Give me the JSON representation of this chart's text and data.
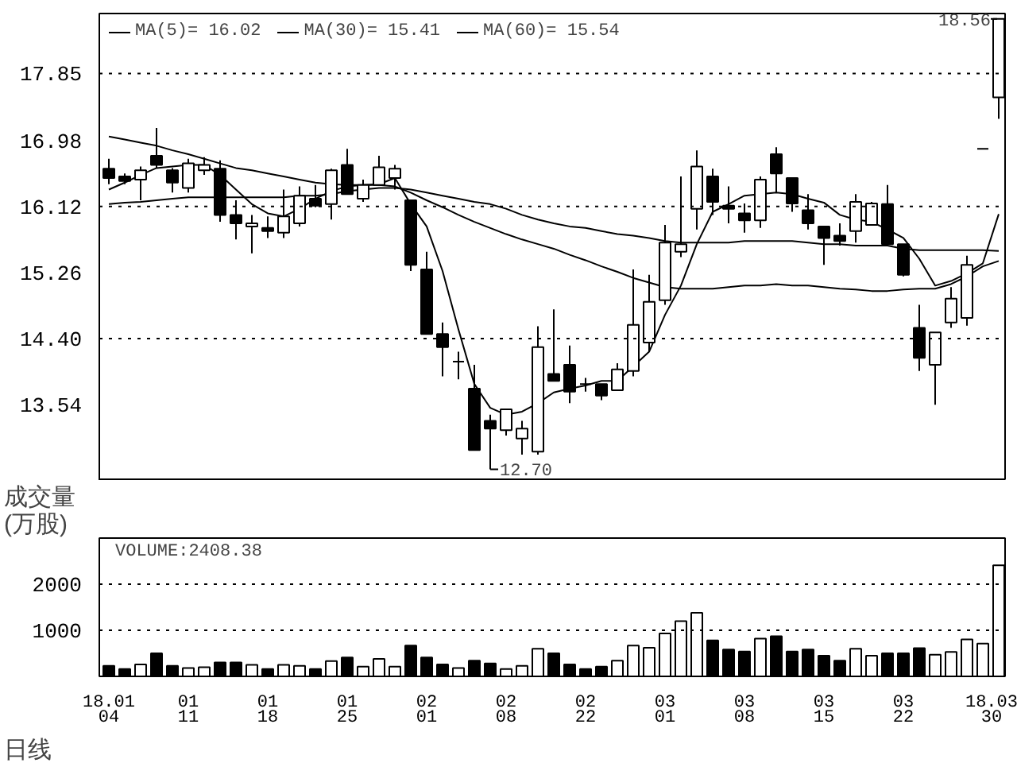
{
  "chart_data": [
    {
      "type": "candlestick",
      "categories": [
        null,
        null,
        null,
        null,
        null,
        null,
        null,
        null,
        null,
        null,
        null,
        null,
        null,
        null,
        null,
        null,
        null,
        null,
        null,
        null,
        null,
        null,
        null,
        null,
        null,
        null,
        null,
        null,
        null,
        null,
        null,
        null,
        null,
        null,
        null,
        null,
        null,
        null,
        null,
        null,
        null,
        null,
        null,
        null,
        null,
        null,
        null,
        null,
        null,
        null,
        null,
        null,
        null,
        null,
        null,
        null,
        null
      ],
      "ohlc": [
        [
          16.61,
          16.74,
          16.41,
          16.49
        ],
        [
          16.51,
          16.55,
          16.41,
          16.45
        ],
        [
          16.47,
          16.64,
          16.2,
          16.59
        ],
        [
          16.78,
          17.14,
          16.62,
          16.66
        ],
        [
          16.59,
          16.62,
          16.3,
          16.43
        ],
        [
          16.36,
          16.74,
          16.3,
          16.68
        ],
        [
          16.59,
          16.76,
          16.53,
          16.66
        ],
        [
          16.61,
          16.72,
          15.92,
          16.01
        ],
        [
          16.01,
          16.2,
          15.69,
          15.9
        ],
        [
          15.86,
          16.01,
          15.51,
          15.9
        ],
        [
          15.84,
          15.99,
          15.71,
          15.8
        ],
        [
          15.78,
          16.34,
          15.71,
          15.99
        ],
        [
          15.9,
          16.38,
          15.86,
          16.26
        ],
        [
          16.22,
          16.4,
          16.11,
          16.13
        ],
        [
          16.15,
          16.61,
          15.95,
          16.59
        ],
        [
          16.66,
          16.87,
          16.28,
          16.28
        ],
        [
          16.22,
          16.47,
          16.18,
          16.4
        ],
        [
          16.4,
          16.78,
          16.4,
          16.63
        ],
        [
          16.49,
          16.66,
          16.34,
          16.61
        ],
        [
          16.2,
          16.2,
          15.28,
          15.36
        ],
        [
          15.3,
          15.53,
          14.46,
          14.46
        ],
        [
          14.46,
          14.61,
          13.91,
          14.29
        ],
        [
          14.1,
          14.23,
          13.87,
          14.1
        ],
        [
          13.75,
          14.06,
          12.95,
          12.95
        ],
        [
          13.33,
          13.41,
          12.7,
          13.23
        ],
        [
          13.21,
          13.48,
          13.14,
          13.48
        ],
        [
          13.1,
          13.33,
          12.89,
          13.23
        ],
        [
          12.93,
          14.56,
          12.89,
          14.29
        ],
        [
          13.94,
          14.78,
          13.85,
          13.85
        ],
        [
          14.06,
          14.31,
          13.56,
          13.71
        ],
        [
          13.81,
          13.89,
          13.71,
          13.81
        ],
        [
          13.81,
          13.81,
          13.6,
          13.66
        ],
        [
          13.73,
          14.08,
          13.73,
          14.0
        ],
        [
          13.98,
          15.3,
          13.91,
          14.58
        ],
        [
          14.35,
          15.23,
          14.23,
          14.88
        ],
        [
          14.9,
          15.88,
          14.84,
          15.65
        ],
        [
          15.53,
          16.51,
          15.46,
          15.63
        ],
        [
          16.09,
          16.85,
          15.82,
          16.64
        ],
        [
          16.51,
          16.61,
          16.01,
          16.18
        ],
        [
          16.13,
          16.38,
          15.9,
          16.09
        ],
        [
          16.03,
          16.16,
          15.78,
          15.94
        ],
        [
          15.94,
          16.51,
          15.84,
          16.47
        ],
        [
          16.8,
          16.89,
          16.3,
          16.55
        ],
        [
          16.49,
          16.49,
          16.05,
          16.16
        ],
        [
          16.07,
          16.28,
          15.82,
          15.9
        ],
        [
          15.86,
          15.86,
          15.36,
          15.71
        ],
        [
          15.74,
          15.9,
          15.61,
          15.67
        ],
        [
          15.8,
          16.28,
          15.65,
          16.18
        ],
        [
          15.88,
          16.18,
          15.88,
          16.16
        ],
        [
          16.15,
          16.4,
          15.63,
          15.63
        ],
        [
          15.63,
          15.63,
          15.21,
          15.23
        ],
        [
          14.54,
          14.84,
          13.98,
          14.15
        ],
        [
          14.06,
          14.48,
          13.54,
          14.48
        ],
        [
          14.61,
          15.07,
          14.54,
          14.92
        ],
        [
          14.67,
          15.48,
          14.57,
          15.36
        ],
        [
          16.87,
          16.87,
          16.87,
          16.87
        ],
        [
          17.54,
          18.56,
          17.26,
          18.56
        ]
      ],
      "series": [
        {
          "name": "MA(5)= 16.02",
          "type": "line",
          "color": "#000000",
          "values": [
            16.34,
            16.43,
            16.53,
            16.62,
            16.64,
            16.66,
            16.66,
            16.53,
            16.34,
            16.15,
            16.03,
            15.99,
            16.09,
            16.22,
            16.32,
            16.38,
            16.4,
            16.41,
            16.49,
            16.15,
            15.86,
            15.28,
            14.52,
            13.81,
            13.5,
            13.41,
            13.45,
            13.56,
            13.7,
            13.75,
            13.79,
            13.85,
            13.85,
            14.04,
            14.23,
            14.71,
            15.09,
            15.63,
            16.05,
            16.15,
            16.26,
            16.28,
            16.3,
            16.28,
            16.22,
            16.17,
            16.01,
            15.95,
            15.92,
            15.82,
            15.71,
            15.44,
            15.09,
            15.15,
            15.25,
            15.38,
            16.02
          ]
        },
        {
          "name": "MA(30)= 15.41",
          "type": "line",
          "color": "#000000",
          "values": [
            17.03,
            16.99,
            16.95,
            16.91,
            16.85,
            16.8,
            16.74,
            16.68,
            16.62,
            16.59,
            16.55,
            16.51,
            16.47,
            16.43,
            16.41,
            16.4,
            16.4,
            16.4,
            16.38,
            16.3,
            16.2,
            16.11,
            16.01,
            15.92,
            15.84,
            15.76,
            15.69,
            15.63,
            15.57,
            15.49,
            15.42,
            15.34,
            15.27,
            15.19,
            15.13,
            15.07,
            15.05,
            15.05,
            15.05,
            15.07,
            15.09,
            15.09,
            15.11,
            15.09,
            15.09,
            15.07,
            15.05,
            15.04,
            15.02,
            15.02,
            15.04,
            15.05,
            15.05,
            15.11,
            15.21,
            15.34,
            15.41
          ]
        },
        {
          "name": "MA(60)= 15.54",
          "type": "line",
          "color": "#000000",
          "values": [
            16.15,
            16.17,
            16.18,
            16.2,
            16.22,
            16.24,
            16.24,
            16.24,
            16.24,
            16.24,
            16.24,
            16.24,
            16.26,
            16.26,
            16.28,
            16.32,
            16.34,
            16.36,
            16.36,
            16.34,
            16.3,
            16.26,
            16.22,
            16.18,
            16.15,
            16.09,
            16.01,
            15.95,
            15.9,
            15.86,
            15.84,
            15.8,
            15.76,
            15.74,
            15.71,
            15.67,
            15.65,
            15.65,
            15.65,
            15.65,
            15.67,
            15.67,
            15.67,
            15.67,
            15.65,
            15.63,
            15.63,
            15.61,
            15.61,
            15.61,
            15.57,
            15.55,
            15.55,
            15.55,
            15.55,
            15.55,
            15.54
          ]
        }
      ],
      "ylim": [
        12.55,
        18.63
      ],
      "yticks": [
        17.85,
        16.98,
        16.12,
        15.26,
        {
          "value": 14.4,
          "label": "14.40"
        },
        13.54
      ],
      "ref_lines": [
        {
          "axis": "y",
          "value": 17.85,
          "line_style": "dotted",
          "color": "#000000"
        },
        {
          "axis": "y",
          "value": 16.12,
          "line_style": "dotted",
          "color": "#000000"
        },
        {
          "axis": "y",
          "value": 14.4,
          "line_style": "dotted",
          "color": "#000000"
        }
      ],
      "annotations": [
        "18.56",
        "12.70"
      ],
      "legend": "top left",
      "tick_labels": "y"
    },
    {
      "type": "bar",
      "categories": [
        "18.01\n04",
        null,
        null,
        null,
        null,
        "01\n11",
        null,
        null,
        null,
        null,
        "01\n18",
        null,
        null,
        null,
        null,
        "01\n25",
        null,
        null,
        null,
        null,
        "02\n01",
        null,
        null,
        null,
        null,
        "02\n08",
        null,
        null,
        null,
        null,
        "02\n22",
        null,
        null,
        null,
        null,
        "03\n01",
        null,
        null,
        null,
        null,
        "03\n08",
        null,
        null,
        null,
        null,
        "03\n15",
        null,
        null,
        null,
        null,
        "03\n22",
        null,
        null,
        null,
        null,
        null,
        "18.03\n30"
      ],
      "values": [
        230,
        160,
        260,
        500,
        230,
        180,
        200,
        300,
        300,
        250,
        160,
        250,
        230,
        160,
        330,
        410,
        210,
        380,
        210,
        670,
        410,
        260,
        180,
        340,
        280,
        160,
        230,
        600,
        500,
        260,
        160,
        210,
        340,
        670,
        620,
        930,
        1200,
        1380,
        780,
        580,
        540,
        820,
        870,
        540,
        580,
        450,
        340,
        600,
        450,
        500,
        500,
        610,
        470,
        530,
        800,
        710,
        2408.38
      ],
      "colors": [
        "#000000",
        "#000000",
        "#ffffff",
        "#000000",
        "#000000",
        "#ffffff",
        "#ffffff",
        "#000000",
        "#000000",
        "#ffffff",
        "#000000",
        "#ffffff",
        "#ffffff",
        "#000000",
        "#ffffff",
        "#000000",
        "#ffffff",
        "#ffffff",
        "#ffffff",
        "#000000",
        "#000000",
        "#000000",
        "#ffffff",
        "#000000",
        "#000000",
        "#ffffff",
        "#ffffff",
        "#ffffff",
        "#000000",
        "#000000",
        "#000000",
        "#000000",
        "#ffffff",
        "#ffffff",
        "#ffffff",
        "#ffffff",
        "#ffffff",
        "#ffffff",
        "#000000",
        "#000000",
        "#000000",
        "#ffffff",
        "#000000",
        "#000000",
        "#000000",
        "#000000",
        "#000000",
        "#ffffff",
        "#ffffff",
        "#000000",
        "#000000",
        "#000000",
        "#ffffff",
        "#ffffff",
        "#ffffff",
        "#ffffff",
        "#ffffff"
      ],
      "ylabel": "成交量\n(万股)",
      "ylim": [
        0,
        3000
      ],
      "yticks": [
        1000,
        2000
      ],
      "ref_lines": [
        {
          "axis": "y",
          "value": 1000,
          "line_style": "dotted",
          "color": "#000000"
        },
        {
          "axis": "y",
          "value": 2000,
          "line_style": "dotted",
          "color": "#000000"
        }
      ],
      "annotations": [
        "VOLUME:2408.38",
        "日线"
      ]
    }
  ]
}
